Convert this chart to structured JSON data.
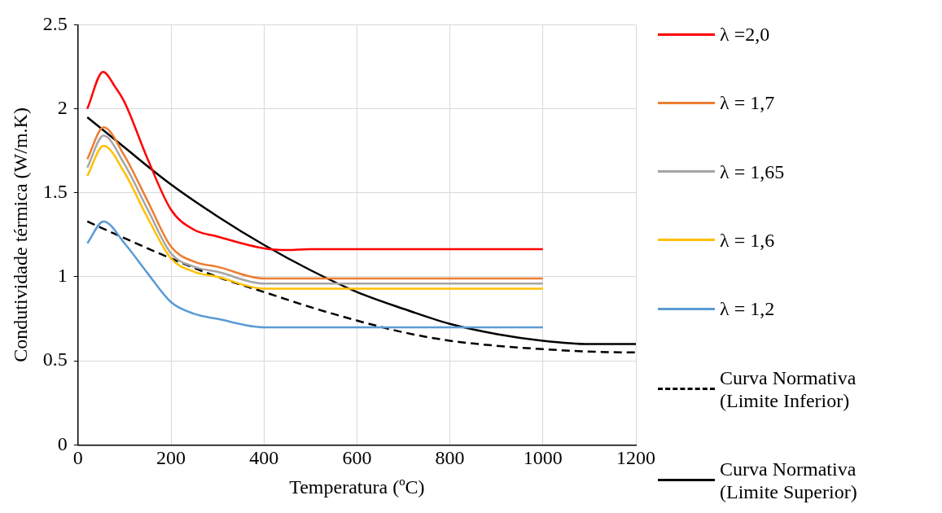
{
  "chart_data": {
    "type": "line",
    "xlabel": "Temperatura (ºC)",
    "ylabel": "Condutividade térmica (W/m.K)",
    "xlim": [
      0,
      1200
    ],
    "xticks": [
      0,
      200,
      400,
      600,
      800,
      1000,
      1200
    ],
    "ylim": [
      0,
      2.5
    ],
    "yticks": [
      0,
      0.5,
      1,
      1.5,
      2,
      2.5
    ],
    "grid": true,
    "legend": "right",
    "marker": "none",
    "series": [
      {
        "name": "λ  =2,0",
        "color": "#ff0000",
        "x": [
          20,
          54,
          80,
          100,
          150,
          200,
          250,
          300,
          400,
          450,
          500,
          1000
        ],
        "values": [
          2.0,
          2.22,
          2.13,
          2.04,
          1.7,
          1.4,
          1.28,
          1.24,
          1.17,
          1.16,
          1.165,
          1.165
        ]
      },
      {
        "name": "λ = 1,7",
        "color": "#ed7d31",
        "x": [
          20,
          55,
          100,
          150,
          200,
          250,
          300,
          400,
          1000
        ],
        "values": [
          1.7,
          1.89,
          1.72,
          1.45,
          1.18,
          1.09,
          1.06,
          0.99,
          0.99
        ]
      },
      {
        "name": "λ = 1,65",
        "color": "#a5a5a5",
        "x": [
          20,
          55,
          100,
          150,
          200,
          250,
          300,
          400,
          1000
        ],
        "values": [
          1.65,
          1.84,
          1.67,
          1.4,
          1.14,
          1.06,
          1.03,
          0.96,
          0.96
        ]
      },
      {
        "name": "λ = 1,6",
        "color": "#ffc000",
        "x": [
          20,
          55,
          100,
          150,
          200,
          250,
          300,
          400,
          1000
        ],
        "values": [
          1.6,
          1.78,
          1.62,
          1.35,
          1.11,
          1.03,
          1.0,
          0.93,
          0.93
        ]
      },
      {
        "name": "λ = 1,2",
        "color": "#5b9bd5",
        "x": [
          20,
          55,
          100,
          150,
          200,
          250,
          300,
          400,
          1000
        ],
        "values": [
          1.2,
          1.33,
          1.2,
          1.02,
          0.85,
          0.78,
          0.75,
          0.7,
          0.7
        ]
      },
      {
        "name": "Curva Normativa (Limite Inferior)",
        "color": "#000000",
        "line_style": "dashed",
        "x": [
          20,
          100,
          200,
          300,
          400,
          500,
          600,
          700,
          800,
          900,
          1000,
          1100,
          1200
        ],
        "values": [
          1.33,
          1.23,
          1.11,
          1.0,
          0.91,
          0.82,
          0.74,
          0.67,
          0.62,
          0.59,
          0.57,
          0.555,
          0.55
        ]
      },
      {
        "name": "Curva Normativa (Limite Superior)",
        "color": "#000000",
        "line_style": "solid",
        "x": [
          20,
          100,
          200,
          300,
          400,
          500,
          600,
          700,
          800,
          900,
          1000,
          1100,
          1200
        ],
        "values": [
          1.95,
          1.77,
          1.55,
          1.36,
          1.19,
          1.04,
          0.91,
          0.81,
          0.72,
          0.66,
          0.62,
          0.6,
          0.6
        ]
      }
    ]
  }
}
